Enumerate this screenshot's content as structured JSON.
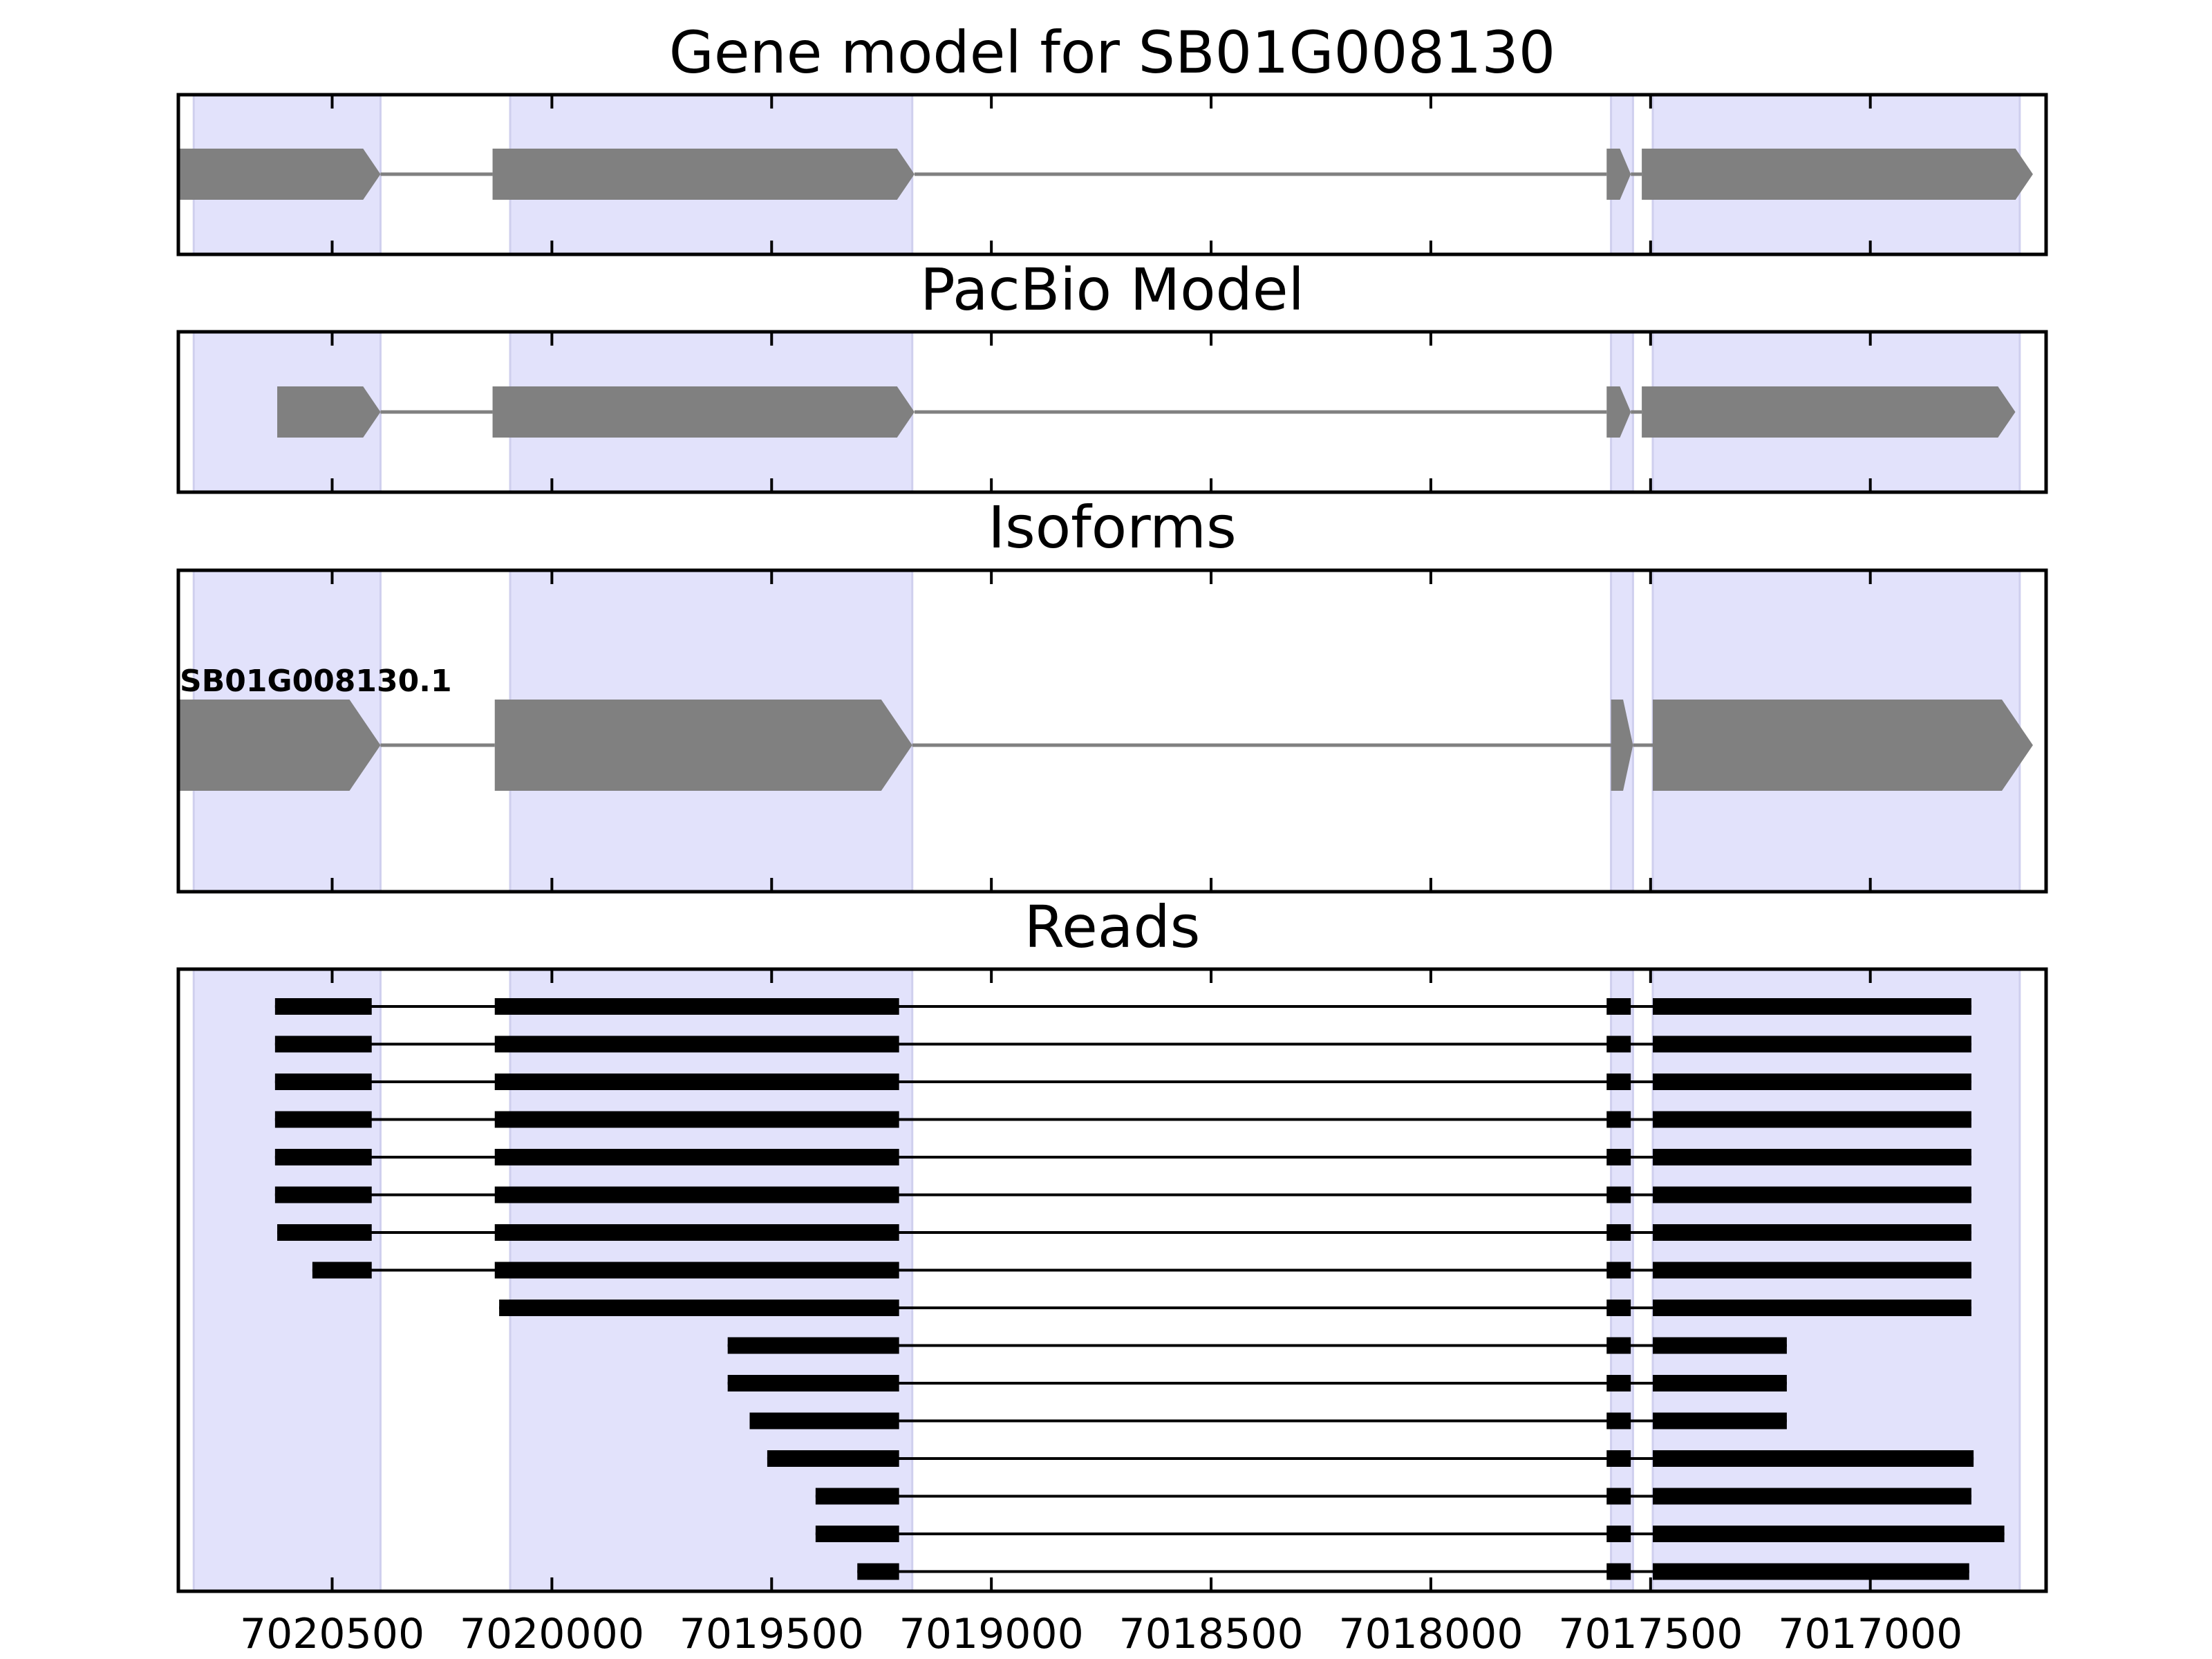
{
  "chart_data": {
    "type": "gene-track",
    "x_axis": {
      "range": [
        7020850,
        7016600
      ],
      "ticks": [
        7020500,
        7020000,
        7019500,
        7019000,
        7018500,
        7018000,
        7017500,
        7017000
      ],
      "tick_labels": [
        "7020500",
        "7020000",
        "7019500",
        "7019000",
        "7018500",
        "7018000",
        "7017500",
        "7017000"
      ]
    },
    "highlight_regions": [
      [
        7020815,
        7020390
      ],
      [
        7020095,
        7019180
      ],
      [
        7017590,
        7017540
      ],
      [
        7017495,
        7016660
      ]
    ],
    "highlight_color": "#e2e2fb",
    "feature_color": "#808080",
    "read_color": "#000000",
    "panels": [
      {
        "title": "Gene model for SB01G008130",
        "features": [
          {
            "exons": [
              [
                7020850,
                7020390
              ],
              [
                7020135,
                7019175
              ],
              [
                7017600,
                7017545
              ],
              [
                7017520,
                7016630
              ]
            ]
          }
        ]
      },
      {
        "title": "PacBio Model",
        "features": [
          {
            "exons": [
              [
                7020625,
                7020390
              ],
              [
                7020135,
                7019175
              ],
              [
                7017600,
                7017545
              ],
              [
                7017520,
                7016670
              ]
            ]
          }
        ]
      },
      {
        "title": "Isoforms",
        "features": [
          {
            "label": "SB01G008130.1",
            "exons": [
              [
                7020850,
                7020390
              ],
              [
                7020130,
                7019180
              ],
              [
                7017590,
                7017540
              ],
              [
                7017495,
                7016630
              ]
            ]
          }
        ]
      },
      {
        "title": "Reads",
        "reads": [
          [
            [
              7020630,
              7020410
            ],
            [
              7020130,
              7019210
            ],
            [
              7017600,
              7017545
            ],
            [
              7017495,
              7016770
            ]
          ],
          [
            [
              7020630,
              7020410
            ],
            [
              7020130,
              7019210
            ],
            [
              7017600,
              7017545
            ],
            [
              7017495,
              7016770
            ]
          ],
          [
            [
              7020630,
              7020410
            ],
            [
              7020130,
              7019210
            ],
            [
              7017600,
              7017545
            ],
            [
              7017495,
              7016770
            ]
          ],
          [
            [
              7020630,
              7020410
            ],
            [
              7020130,
              7019210
            ],
            [
              7017600,
              7017545
            ],
            [
              7017495,
              7016770
            ]
          ],
          [
            [
              7020630,
              7020410
            ],
            [
              7020130,
              7019210
            ],
            [
              7017600,
              7017545
            ],
            [
              7017495,
              7016770
            ]
          ],
          [
            [
              7020630,
              7020410
            ],
            [
              7020130,
              7019210
            ],
            [
              7017600,
              7017545
            ],
            [
              7017495,
              7016770
            ]
          ],
          [
            [
              7020625,
              7020410
            ],
            [
              7020130,
              7019210
            ],
            [
              7017600,
              7017545
            ],
            [
              7017495,
              7016770
            ]
          ],
          [
            [
              7020545,
              7020410
            ],
            [
              7020130,
              7019210
            ],
            [
              7017600,
              7017545
            ],
            [
              7017495,
              7016770
            ]
          ],
          [
            [
              7020120,
              7019210
            ],
            [
              7017600,
              7017545
            ],
            [
              7017495,
              7016770
            ]
          ],
          [
            [
              7019600,
              7019210
            ],
            [
              7017600,
              7017545
            ],
            [
              7017495,
              7017190
            ]
          ],
          [
            [
              7019600,
              7019210
            ],
            [
              7017600,
              7017545
            ],
            [
              7017495,
              7017190
            ]
          ],
          [
            [
              7019550,
              7019210
            ],
            [
              7017600,
              7017545
            ],
            [
              7017495,
              7017190
            ]
          ],
          [
            [
              7019510,
              7019210
            ],
            [
              7017600,
              7017545
            ],
            [
              7017495,
              7016765
            ]
          ],
          [
            [
              7019400,
              7019210
            ],
            [
              7017600,
              7017545
            ],
            [
              7017495,
              7016770
            ]
          ],
          [
            [
              7019400,
              7019210
            ],
            [
              7017600,
              7017545
            ],
            [
              7017495,
              7016695
            ]
          ],
          [
            [
              7019305,
              7019210
            ],
            [
              7017600,
              7017545
            ],
            [
              7017495,
              7016775
            ]
          ]
        ]
      }
    ]
  }
}
